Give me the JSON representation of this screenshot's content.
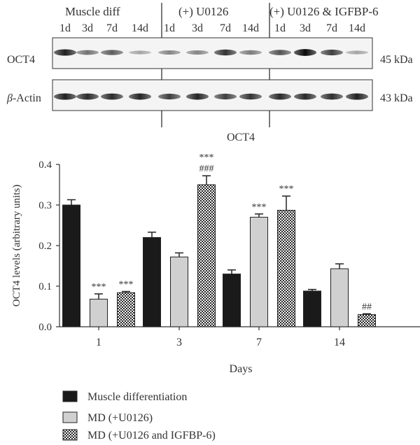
{
  "blot": {
    "groups": [
      "Muscle diff",
      "(+) U0126",
      "(+) U0126 & IGFBP-6"
    ],
    "lane_labels": [
      "1d",
      "3d",
      "7d",
      "14d",
      "1d",
      "3d",
      "7d",
      "14d",
      "1d",
      "3d",
      "7d",
      "14d"
    ],
    "rows": [
      {
        "label": "OCT4",
        "size": "45 kDa",
        "intensities": [
          0.85,
          0.45,
          0.55,
          0.2,
          0.35,
          0.35,
          0.75,
          0.4,
          0.6,
          0.95,
          0.7,
          0.2
        ]
      },
      {
        "label_prefix": "β",
        "label_suffix": "-Actin",
        "size": "43 kDa",
        "intensities": [
          0.85,
          0.8,
          0.8,
          0.82,
          0.7,
          0.82,
          0.7,
          0.75,
          0.8,
          0.8,
          0.78,
          0.85
        ]
      }
    ]
  },
  "chart_data": {
    "type": "bar",
    "title": "OCT4",
    "xlabel": "Days",
    "ylabel": "OCT4 levels (arbitrary units)",
    "categories": [
      "1",
      "3",
      "7",
      "14"
    ],
    "ylim": [
      0,
      0.4
    ],
    "yticks": [
      "0.0",
      "0.1",
      "0.2",
      "0.3",
      "0.4"
    ],
    "series": [
      {
        "name": "Muscle differentiation",
        "fill": "#1a1a1a",
        "values": [
          0.3,
          0.22,
          0.13,
          0.088
        ],
        "errors": [
          0.013,
          0.013,
          0.01,
          0.004
        ],
        "annotations": [
          "",
          "",
          "",
          ""
        ]
      },
      {
        "name": "MD (+U0126)",
        "fill": "#d0d0d0",
        "values": [
          0.068,
          0.172,
          0.27,
          0.143
        ],
        "errors": [
          0.013,
          0.01,
          0.008,
          0.012
        ],
        "annotations": [
          "***",
          "",
          "***",
          ""
        ]
      },
      {
        "name": "MD (+U0126 and IGFBP-6)",
        "fill": "checker",
        "values": [
          0.084,
          0.35,
          0.287,
          0.03
        ],
        "errors": [
          0.003,
          0.022,
          0.035,
          0.002
        ],
        "annotations": [
          "***",
          "***\n###",
          "***",
          "##"
        ]
      }
    ]
  }
}
